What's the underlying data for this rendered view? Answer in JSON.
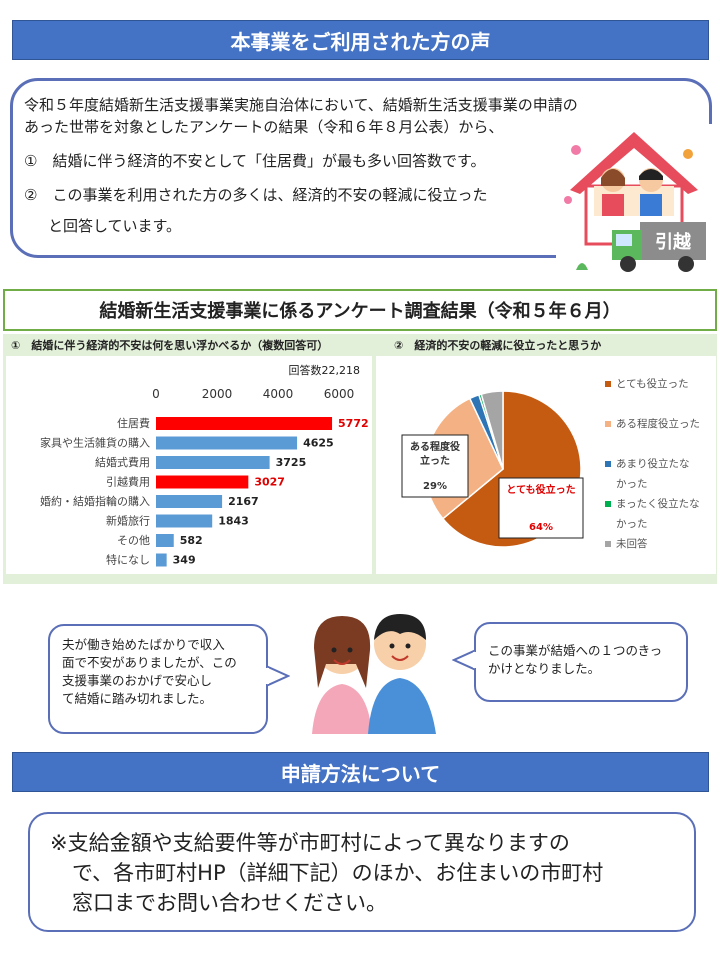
{
  "header": {
    "title": "本事業をご利用された方の声"
  },
  "intro": {
    "line1": "令和５年度結婚新生活支援事業実施自治体において、結婚新生活支援事業の申請の",
    "line2": "あった世帯を対象としたアンケートの結果（令和６年８月公表）から、",
    "item1": "①　結婚に伴う経済的不安として「住居費」が最も多い回答数です。",
    "item2a": "②　この事業を利用された方の多くは、経済的不安の軽減に役立った",
    "item2b": "と回答しています。",
    "truck_label": "引越"
  },
  "survey": {
    "title": "結婚新生活支援事業に係るアンケート調査結果（令和５年６月）",
    "q1": "①　結婚に伴う経済的不安は何を思い浮かべるか（複数回答可）",
    "q2": "②　経済的不安の軽減に役立ったと思うか"
  },
  "colors": {
    "banner": "#4472c4",
    "highlight_bar": "#ff0000",
    "normal_bar": "#5b9bd5",
    "panel_bg": "#e2efd9"
  },
  "chart_data": [
    {
      "type": "bar",
      "orientation": "horizontal",
      "note": "回答数22,218",
      "categories": [
        "住居費",
        "家具や生活雑貨の購入",
        "結婚式費用",
        "引越費用",
        "婚約・結婚指輪の購入",
        "新婚旅行",
        "その他",
        "特になし"
      ],
      "values": [
        5772,
        4625,
        3725,
        3027,
        2167,
        1843,
        582,
        349
      ],
      "highlight": [
        true,
        false,
        false,
        true,
        false,
        false,
        false,
        false
      ],
      "xticks": [
        "0",
        "2000",
        "4000",
        "6000"
      ],
      "xlim": [
        0,
        6000
      ],
      "grid": false
    },
    {
      "type": "pie",
      "slices": [
        {
          "label": "とても役立った",
          "value": 64,
          "color": "#c55a11",
          "data_label": "とても役立った",
          "pct": "64%"
        },
        {
          "label": "ある程度役立った",
          "value": 29,
          "color": "#f4b183",
          "data_label": "ある程度役\n立った",
          "pct": "29%"
        },
        {
          "label": "あまり役立たなかった",
          "value": 2,
          "color": "#2e75b6"
        },
        {
          "label": "まったく役立たなかった",
          "value": 0.5,
          "color": "#00b050"
        },
        {
          "label": "未回答",
          "value": 4.5,
          "color": "#a5a5a5"
        }
      ],
      "legend": [
        {
          "line1": "とても役立った",
          "line2": ""
        },
        {
          "line1": "ある程度役立った",
          "line2": ""
        },
        {
          "line1": "あまり役立たな",
          "line2": "かった"
        },
        {
          "line1": "まったく役立たな",
          "line2": "かった"
        },
        {
          "line1": "未回答",
          "line2": ""
        }
      ],
      "legend_position": "right"
    }
  ],
  "voices": {
    "left": [
      "夫が働き始めたばかりで収入",
      "面で不安がありましたが、この",
      "支援事業のおかげで安心し",
      "て結婚に踏み切れました。"
    ],
    "right": [
      "この事業が結婚への１つのきっ",
      "かけとなりました。"
    ]
  },
  "apply": {
    "title": "申請方法について",
    "line1": "※支給金額や支給要件等が市町村によって異なりますの",
    "line2": "で、各市町村HP（詳細下記）のほか、お住まいの市町村",
    "line3": "窓口までお問い合わせください。"
  }
}
